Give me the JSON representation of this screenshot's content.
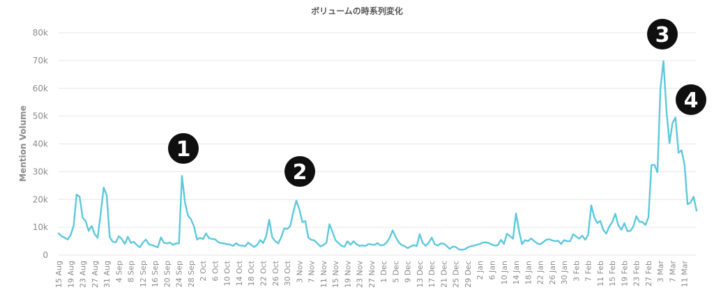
{
  "chart_data": {
    "type": "line",
    "title": "ボリュームの時系列変化",
    "xlabel": "",
    "ylabel": "Mention Volume",
    "ylim": [
      0,
      80000
    ],
    "y_ticks": [
      "0",
      "10k",
      "20k",
      "30k",
      "40k",
      "50k",
      "60k",
      "70k",
      "80k"
    ],
    "grid": true,
    "legend": "none",
    "line_color": "#5cc8dc",
    "start_date": "2019-08-15",
    "x_tick_labels": [
      "15 Aug",
      "19 Aug",
      "23 Aug",
      "27 Aug",
      "31 Aug",
      "4 Sep",
      "8 Sep",
      "12 Sep",
      "16 Sep",
      "20 Sep",
      "24 Sep",
      "28 Sep",
      "2 Oct",
      "6 Oct",
      "10 Oct",
      "14 Oct",
      "18 Oct",
      "22 Oct",
      "26 Oct",
      "30 Oct",
      "3 Nov",
      "7 Nov",
      "11 Nov",
      "15 Nov",
      "19 Nov",
      "23 Nov",
      "27 Nov",
      "1 Dec",
      "5 Dec",
      "9 Dec",
      "13 Dec",
      "17 Dec",
      "21 Dec",
      "25 Dec",
      "29 Dec",
      "2 Jan",
      "6 Jan",
      "10 Jan",
      "14 Jan",
      "18 Jan",
      "22 Jan",
      "26 Jan",
      "30 Jan",
      "3 Feb",
      "7 Feb",
      "11 Feb",
      "15 Feb",
      "19 Feb",
      "23 Feb",
      "27 Feb",
      "3 Mar",
      "7 Mar",
      "11 Mar"
    ],
    "series": [
      {
        "name": "",
        "values": [
          7800,
          6800,
          6300,
          5600,
          7200,
          10500,
          21800,
          21000,
          13500,
          12200,
          8700,
          10500,
          7500,
          6200,
          15000,
          24300,
          21500,
          6400,
          4800,
          4600,
          6800,
          5800,
          4000,
          6600,
          4400,
          4800,
          3600,
          2800,
          4500,
          5600,
          3900,
          3600,
          3200,
          2800,
          6400,
          4400,
          4200,
          4500,
          3700,
          4200,
          4200,
          28500,
          19000,
          14200,
          12900,
          10300,
          5600,
          6200,
          5800,
          7800,
          6100,
          5800,
          5700,
          4700,
          4300,
          4200,
          3900,
          3800,
          3300,
          4300,
          3500,
          3400,
          3200,
          4500,
          3700,
          2900,
          3700,
          5400,
          4300,
          6900,
          12700,
          6400,
          5000,
          4200,
          6500,
          9600,
          9400,
          10500,
          15500,
          19600,
          16500,
          11900,
          12200,
          6300,
          5500,
          5300,
          4200,
          3100,
          3600,
          4400,
          11100,
          8400,
          5400,
          4400,
          3300,
          3000,
          5000,
          3700,
          5000,
          3900,
          3300,
          3500,
          3300,
          4000,
          3800,
          3700,
          4300,
          3500,
          3600,
          4500,
          6200,
          8900,
          6600,
          4600,
          3600,
          3200,
          2500,
          3100,
          3600,
          3200,
          7500,
          4400,
          3300,
          4500,
          6300,
          3900,
          3400,
          4200,
          4100,
          3300,
          2200,
          3100,
          2900,
          2100,
          1900,
          2100,
          2800,
          3200,
          3400,
          3700,
          4000,
          4500,
          4600,
          4300,
          3800,
          3400,
          3600,
          5500,
          4000,
          7700,
          6800,
          5900,
          15000,
          8800,
          3900,
          5400,
          5000,
          6000,
          5100,
          4200,
          3900,
          4600,
          5500,
          5700,
          5300,
          5000,
          5200,
          4000,
          5400,
          5000,
          5000,
          7500,
          6700,
          5900,
          7000,
          5500,
          7400,
          17900,
          13600,
          11500,
          12300,
          9100,
          7700,
          10300,
          11900,
          14900,
          10700,
          9100,
          11500,
          8600,
          8700,
          10300,
          14000,
          12000,
          12000,
          10800,
          13600,
          32400,
          32500,
          29800,
          60000,
          69800,
          52000,
          40300,
          47500,
          49500,
          36800,
          37700,
          32500,
          18300,
          18900,
          21000,
          16000
        ]
      }
    ],
    "annotations": [
      "1",
      "2",
      "3",
      "4"
    ]
  }
}
